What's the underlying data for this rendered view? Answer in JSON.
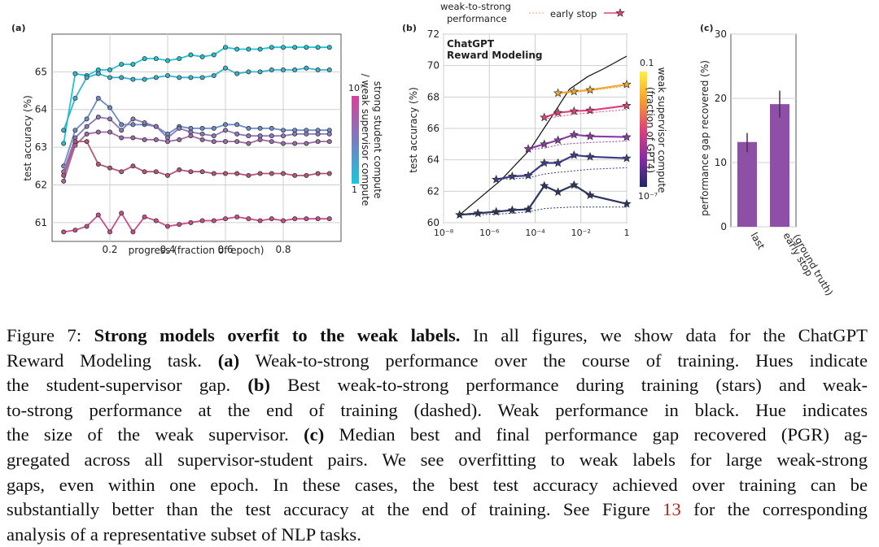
{
  "panels": {
    "a": {
      "label": "(a)",
      "xlabel": "progress (fraction of epoch)",
      "ylabel": "test accuracy (%)",
      "colorbar_label_1": "strong student compute",
      "colorbar_label_2": "/ weak supervisor compute",
      "colorbar_top": "10⁷",
      "colorbar_bottom": "1"
    },
    "b": {
      "label": "(b)",
      "title_line1": "ChatGPT",
      "title_line2": "Reward Modeling",
      "xlabel_ticks": [
        "10⁻⁸",
        "10⁻⁶",
        "10⁻⁴",
        "10⁻²",
        "1"
      ],
      "ylabel": "test accuracy (%)",
      "legend_weak_1": "weak-to-strong",
      "legend_weak_2": "performance",
      "legend_early": "early stop",
      "colorbar_label_1": "weak supervisor compute",
      "colorbar_label_2": "(fraction of GPT4)",
      "colorbar_top": "0.1",
      "colorbar_bottom": "10⁻⁷"
    },
    "c": {
      "label": "(c)",
      "ylabel": "performance gap recovered (%)"
    }
  },
  "chart_data": [
    {
      "type": "line",
      "panel": "a",
      "xlabel": "progress (fraction of epoch)",
      "ylabel": "test accuracy (%)",
      "xlim": [
        0.0,
        1.0
      ],
      "ylim": [
        60.5,
        66.0
      ],
      "x_ticks": [
        0.2,
        0.4,
        0.6,
        0.8
      ],
      "y_ticks": [
        61,
        62,
        63,
        64,
        65
      ],
      "x": [
        0.04,
        0.08,
        0.12,
        0.16,
        0.2,
        0.24,
        0.28,
        0.32,
        0.36,
        0.4,
        0.44,
        0.48,
        0.52,
        0.56,
        0.6,
        0.64,
        0.68,
        0.72,
        0.76,
        0.8,
        0.84,
        0.88,
        0.92,
        0.96
      ],
      "series": [
        {
          "name": "s1",
          "color": "#1fc4d6",
          "values": [
            63.1,
            64.95,
            64.9,
            65.05,
            65.05,
            65.2,
            65.2,
            65.35,
            65.35,
            65.3,
            65.35,
            65.45,
            65.4,
            65.45,
            65.65,
            65.6,
            65.6,
            65.6,
            65.65,
            65.65,
            65.65,
            65.65,
            65.65,
            65.65
          ]
        },
        {
          "name": "s2",
          "color": "#37b4cf",
          "values": [
            63.45,
            64.3,
            64.85,
            64.95,
            64.85,
            64.85,
            64.8,
            64.8,
            64.85,
            64.9,
            64.85,
            64.85,
            64.85,
            64.9,
            65.1,
            64.95,
            65.0,
            65.0,
            65.05,
            65.05,
            65.05,
            65.1,
            65.05,
            65.05
          ]
        },
        {
          "name": "s3",
          "color": "#6b8ec7",
          "values": [
            62.5,
            63.45,
            63.75,
            64.3,
            64.05,
            63.6,
            63.6,
            63.6,
            63.55,
            63.35,
            63.55,
            63.5,
            63.5,
            63.5,
            63.6,
            63.6,
            63.5,
            63.5,
            63.5,
            63.45,
            63.45,
            63.45,
            63.45,
            63.45
          ]
        },
        {
          "name": "s4",
          "color": "#8f78bb",
          "values": [
            62.35,
            63.25,
            63.55,
            63.8,
            63.75,
            63.45,
            63.75,
            63.65,
            63.55,
            63.25,
            63.5,
            63.4,
            63.35,
            63.3,
            63.45,
            63.35,
            63.3,
            63.3,
            63.3,
            63.3,
            63.35,
            63.35,
            63.35,
            63.35
          ]
        },
        {
          "name": "s5",
          "color": "#9e6aa6",
          "values": [
            62.1,
            63.05,
            63.35,
            63.4,
            63.4,
            63.25,
            63.25,
            63.2,
            63.2,
            63.15,
            63.2,
            63.3,
            63.2,
            63.15,
            63.15,
            63.15,
            63.1,
            63.2,
            63.15,
            63.1,
            63.1,
            63.1,
            63.15,
            63.15
          ]
        },
        {
          "name": "s6",
          "color": "#b6557a",
          "values": [
            62.25,
            63.15,
            63.15,
            62.55,
            62.45,
            62.35,
            62.5,
            62.35,
            62.35,
            62.25,
            62.4,
            62.35,
            62.35,
            62.3,
            62.3,
            62.3,
            62.25,
            62.3,
            62.3,
            62.3,
            62.25,
            62.25,
            62.3,
            62.3
          ]
        },
        {
          "name": "s7",
          "color": "#c94d8b",
          "values": [
            60.75,
            60.8,
            60.9,
            61.2,
            60.75,
            61.25,
            60.75,
            61.15,
            61.05,
            60.9,
            60.95,
            61.0,
            61.05,
            61.05,
            61.1,
            61.15,
            61.1,
            61.05,
            61.1,
            61.05,
            61.1,
            61.1,
            61.1,
            61.1
          ]
        }
      ]
    },
    {
      "type": "line",
      "panel": "b",
      "title": "ChatGPT Reward Modeling",
      "ylabel": "test accuracy (%)",
      "x_scale": "log10",
      "xlim_log10": [
        -8,
        0
      ],
      "ylim": [
        60,
        72
      ],
      "y_ticks": [
        60,
        62,
        64,
        66,
        68,
        70,
        72
      ],
      "weak_performance": {
        "color": "#111111",
        "x_log10": [
          -7.3,
          -5.5,
          -4.2,
          -3.3,
          -2.5,
          -1.7,
          -1.0,
          0.0
        ],
        "values": [
          60.5,
          62.7,
          64.7,
          66.7,
          68.5,
          69.3,
          69.8,
          70.6
        ]
      },
      "series": [
        {
          "name": "stars-1",
          "color": "#2a3560",
          "x_log10": [
            -7.3,
            -6.5,
            -5.7,
            -5.0,
            -4.3,
            -3.6,
            -3.0,
            -2.3,
            -1.6,
            0.0
          ],
          "values": [
            60.5,
            60.6,
            60.7,
            60.8,
            60.85,
            62.35,
            61.95,
            62.4,
            61.75,
            61.2
          ],
          "dashed_values": [
            60.5,
            60.5,
            60.55,
            60.6,
            60.7,
            60.9,
            60.95,
            61.0,
            61.0,
            61.0
          ]
        },
        {
          "name": "stars-2",
          "color": "#3d3d8a",
          "x_log10": [
            -5.7,
            -5.0,
            -4.3,
            -3.6,
            -3.0,
            -2.3,
            -1.6,
            0.0
          ],
          "values": [
            62.75,
            62.95,
            63.0,
            63.8,
            63.8,
            64.3,
            64.2,
            64.1
          ],
          "dashed_values": [
            62.75,
            62.8,
            62.85,
            63.1,
            63.2,
            63.3,
            63.4,
            63.5
          ]
        },
        {
          "name": "stars-3",
          "color": "#8b3aa6",
          "x_log10": [
            -4.3,
            -3.6,
            -3.0,
            -2.3,
            -1.6,
            0.0
          ],
          "values": [
            64.7,
            65.0,
            65.25,
            65.6,
            65.5,
            65.45
          ],
          "dashed_values": [
            64.65,
            64.75,
            64.95,
            65.05,
            65.1,
            65.2
          ]
        },
        {
          "name": "stars-4",
          "color": "#e0407a",
          "x_log10": [
            -3.6,
            -3.0,
            -2.3,
            -1.6,
            0.0
          ],
          "values": [
            66.7,
            67.0,
            67.1,
            67.15,
            67.45
          ],
          "dashed_values": [
            66.6,
            66.75,
            66.9,
            67.0,
            67.2
          ]
        },
        {
          "name": "stars-5",
          "color": "#f0a830",
          "x_log10": [
            -3.0,
            -2.3,
            -1.6,
            0.0
          ],
          "values": [
            68.25,
            68.35,
            68.45,
            68.8
          ],
          "dashed_values": [
            68.2,
            68.3,
            68.4,
            68.7
          ]
        }
      ]
    },
    {
      "type": "bar",
      "panel": "c",
      "ylabel": "performance gap recovered (%)",
      "ylim": [
        0,
        30
      ],
      "y_ticks": [
        0,
        10,
        20,
        30
      ],
      "categories": [
        "last",
        "early stop\n(ground truth)"
      ],
      "category_lines": [
        [
          "last"
        ],
        [
          "early stop",
          "(ground truth)"
        ]
      ],
      "values": [
        13.2,
        19.1
      ],
      "errors": [
        [
          11.6,
          14.6
        ],
        [
          17.0,
          21.2
        ]
      ],
      "color": "#8e4fa6"
    }
  ],
  "caption": {
    "lines": [
      [
        {
          "t": "Figure 7: "
        },
        {
          "t": "Strong models overfit to the weak labels.",
          "b": true
        },
        {
          "t": " In all figures, we show data for the ChatGPT"
        }
      ],
      [
        {
          "t": "Reward Modeling task. "
        },
        {
          "t": "(a)",
          "b": true
        },
        {
          "t": " Weak-to-strong performance over the course of training. Hues indicate"
        }
      ],
      [
        {
          "t": "the student-supervisor gap. "
        },
        {
          "t": "(b)",
          "b": true
        },
        {
          "t": " Best weak-to-strong performance during training (stars) and weak-"
        }
      ],
      [
        {
          "t": "to-strong performance at the end of training (dashed). Weak performance in black. Hue indicates"
        }
      ],
      [
        {
          "t": "the size of the weak supervisor. "
        },
        {
          "t": "(c)",
          "b": true
        },
        {
          "t": " Median best and final performance gap recovered (PGR) ag-"
        }
      ],
      [
        {
          "t": "gregated across all supervisor-student pairs. We see overfitting to weak labels for large weak-strong"
        }
      ],
      [
        {
          "t": "gaps, even within one epoch. In these cases, the best test accuracy achieved over training can be"
        }
      ],
      [
        {
          "t": "substantially better than the test accuracy at the end of training. See Figure "
        },
        {
          "t": "13",
          "ref": true
        },
        {
          "t": " for the corresponding"
        }
      ],
      [
        {
          "t": "analysis of a representative subset of NLP tasks."
        }
      ]
    ]
  }
}
